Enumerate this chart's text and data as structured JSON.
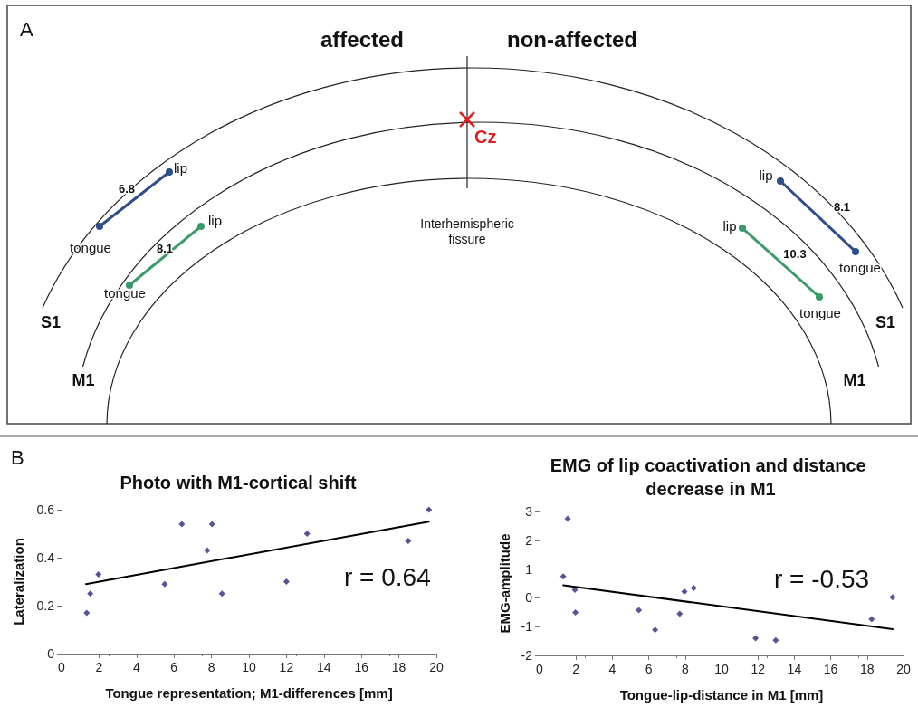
{
  "chart_data": [
    {
      "type": "other",
      "annotations": [
        "A",
        "affected",
        "non-affected",
        "Cz",
        "lip",
        "tongue",
        "6.8",
        "lip",
        "tongue",
        "8.1",
        "Interhemispheric\nfissure",
        "lip",
        "tongue",
        "8.1",
        "lip",
        "tongue",
        "10.3",
        "S1",
        "M1",
        "S1",
        "M1"
      ]
    },
    {
      "type": "scatter",
      "title": "Photo with M1-cortical shift",
      "xlabel": "Tongue representation; M1-differences [mm]",
      "ylabel": "Lateralization",
      "annotations": [
        "B",
        "r = 0.64"
      ],
      "marker": "diamond",
      "xlim": [
        0,
        20
      ],
      "xticks": [
        0,
        2,
        4,
        6,
        8,
        10,
        12,
        14,
        16,
        18,
        20
      ],
      "ylim": [
        0,
        0.6
      ],
      "yticks": [
        0,
        0.2,
        0.4,
        0.6
      ],
      "series": [
        {
          "color": "#2a2a7a",
          "x": [
            1.34,
            1.53,
            1.97,
            5.5,
            6.42,
            7.77,
            8.03,
            8.56,
            12.0,
            13.1,
            18.5,
            19.6
          ],
          "values": [
            0.17,
            0.25,
            0.33,
            0.29,
            0.54,
            0.43,
            0.54,
            0.25,
            0.3,
            0.5,
            0.47,
            0.6
          ]
        },
        {
          "type": "line",
          "color": "#000000",
          "marker": "none",
          "x": [
            1.3,
            19.6
          ],
          "values": [
            0.29,
            0.55
          ]
        }
      ]
    },
    {
      "type": "scatter",
      "title": "EMG of lip coactivation and distance decrease in M1",
      "xlabel": "Tongue-lip-distance in M1 [mm]",
      "ylabel": "EMG-amplitude",
      "annotations": [
        "r = -0.53"
      ],
      "marker": "diamond",
      "xlim": [
        0,
        20
      ],
      "xticks": [
        0,
        2,
        4,
        6,
        8,
        10,
        12,
        14,
        16,
        18,
        20
      ],
      "ylim": [
        -2,
        3
      ],
      "yticks": [
        -2,
        -1,
        0,
        1,
        2,
        3
      ],
      "series": [
        {
          "color": "#2a2a7a",
          "x": [
            1.3,
            1.55,
            1.94,
            1.97,
            5.45,
            6.35,
            7.7,
            7.96,
            8.47,
            11.87,
            12.98,
            18.25,
            19.4
          ],
          "values": [
            0.74,
            2.75,
            0.28,
            -0.51,
            -0.43,
            -1.11,
            -0.55,
            0.22,
            0.34,
            -1.4,
            -1.47,
            -0.74,
            0.02
          ]
        },
        {
          "type": "line",
          "color": "#000000",
          "marker": "none",
          "x": [
            1.3,
            19.4
          ],
          "values": [
            0.44,
            -1.09
          ]
        }
      ]
    }
  ]
}
